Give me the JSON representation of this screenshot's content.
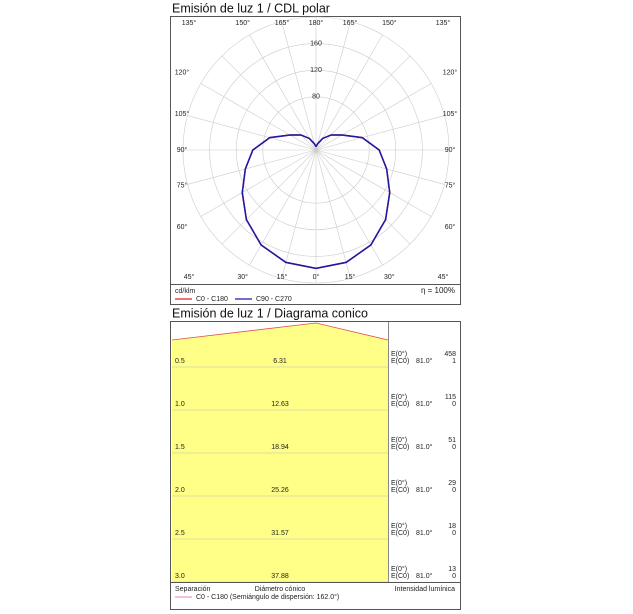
{
  "chart_data": {
    "type": "polar",
    "title": "Emisión de luz 1 / CDL polar",
    "theta": [
      0,
      15,
      30,
      45,
      60,
      75,
      90,
      105,
      120,
      135,
      150,
      165,
      180
    ],
    "series": [
      {
        "name": "C0 - C180",
        "color": "#e02020",
        "values": [
          178,
          175,
          165,
          148,
          128,
          110,
          95,
          72,
          45,
          32,
          20,
          10,
          5
        ]
      },
      {
        "name": "C90 - C270",
        "color": "#1a1aa8",
        "values": [
          178,
          175,
          165,
          148,
          128,
          110,
          95,
          72,
          45,
          32,
          20,
          10,
          5
        ]
      }
    ],
    "rlim": [
      0,
      200
    ],
    "rticks": [
      80,
      120,
      160
    ],
    "thetaticks": [
      {
        "value": 0,
        "label": "0°"
      },
      {
        "value": 15,
        "label": "15°"
      },
      {
        "value": 30,
        "label": "30°"
      },
      {
        "value": 45,
        "label": "45°"
      },
      {
        "value": 60,
        "label": "60°"
      },
      {
        "value": 75,
        "label": "75°"
      },
      {
        "value": 90,
        "label": "90°"
      },
      {
        "value": 105,
        "label": "105°"
      },
      {
        "value": 120,
        "label": "120°"
      },
      {
        "value": 135,
        "label": "135°"
      },
      {
        "value": 150,
        "label": "150°"
      },
      {
        "value": 165,
        "label": "165°"
      },
      {
        "value": 180,
        "label": "180°"
      }
    ],
    "unit": "cd/klm",
    "efficiency": "η = 100%"
  },
  "cone": {
    "title": "Emisión de luz 1 / Diagrama conico",
    "labels": {
      "e0": "E(0°)",
      "ec0": "E(C0)"
    },
    "rows": [
      [
        "0.5",
        "6.31",
        "81.0°",
        "458",
        "1"
      ],
      [
        "1.0",
        "12.63",
        "81.0°",
        "115",
        "0"
      ],
      [
        "1.5",
        "18.94",
        "81.0°",
        "51",
        "0"
      ],
      [
        "2.0",
        "25.26",
        "81.0°",
        "29",
        "0"
      ],
      [
        "2.5",
        "31.57",
        "81.0°",
        "18",
        "0"
      ],
      [
        "3.0",
        "37.88",
        "81.0°",
        "13",
        "0"
      ]
    ],
    "footer": [
      "Separación",
      "Diámetro cónico",
      "Intensidad lumínica"
    ],
    "legend": "C0 - C180 (Semiángulo de dispersión: 162.0°)"
  }
}
